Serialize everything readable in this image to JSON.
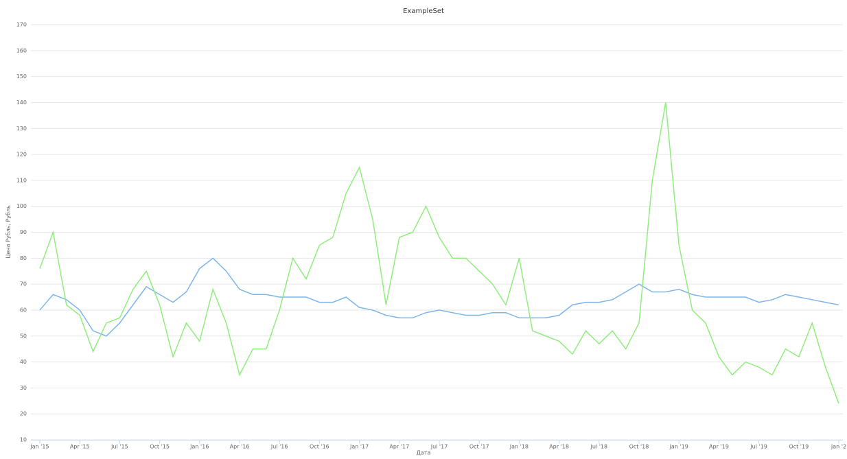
{
  "chart_data": {
    "type": "line",
    "title": "ExampleSet",
    "x_label": "Дата",
    "y_label": "Цена Рубль, Рубль",
    "x": [
      "2015-01",
      "2015-02",
      "2015-03",
      "2015-04",
      "2015-05",
      "2015-06",
      "2015-07",
      "2015-08",
      "2015-09",
      "2015-10",
      "2015-11",
      "2015-12",
      "2016-01",
      "2016-02",
      "2016-03",
      "2016-04",
      "2016-05",
      "2016-06",
      "2016-07",
      "2016-08",
      "2016-09",
      "2016-10",
      "2016-11",
      "2016-12",
      "2017-01",
      "2017-02",
      "2017-03",
      "2017-04",
      "2017-05",
      "2017-06",
      "2017-07",
      "2017-08",
      "2017-09",
      "2017-10",
      "2017-11",
      "2017-12",
      "2018-01",
      "2018-02",
      "2018-03",
      "2018-04",
      "2018-05",
      "2018-06",
      "2018-07",
      "2018-08",
      "2018-09",
      "2018-10",
      "2018-11",
      "2018-12",
      "2019-01",
      "2019-02",
      "2019-03",
      "2019-04",
      "2019-05",
      "2019-06",
      "2019-07",
      "2019-08",
      "2019-09",
      "2019-10",
      "2019-11",
      "2019-12",
      "2020-01"
    ],
    "series": [
      {
        "color": "#7cb5ec",
        "values": [
          60,
          66,
          64,
          60,
          52,
          50,
          55,
          62,
          69,
          66,
          63,
          67,
          76,
          80,
          75,
          68,
          66,
          66,
          65,
          65,
          65,
          63,
          63,
          65,
          61,
          60,
          58,
          57,
          57,
          59,
          60,
          59,
          58,
          58,
          59,
          59,
          57,
          57,
          57,
          58,
          62,
          63,
          63,
          64,
          67,
          70,
          67,
          67,
          68,
          66,
          65,
          65,
          65,
          65,
          63,
          64,
          66,
          65,
          64,
          63,
          62
        ]
      },
      {
        "color": "#90ed7d",
        "values": [
          76,
          90,
          62,
          58,
          44,
          55,
          57,
          68,
          75,
          62,
          42,
          55,
          48,
          68,
          55,
          35,
          45,
          45,
          60,
          80,
          72,
          85,
          88,
          105,
          115,
          95,
          62,
          88,
          90,
          100,
          88,
          80,
          80,
          75,
          70,
          62,
          80,
          52,
          50,
          48,
          43,
          52,
          47,
          52,
          45,
          55,
          110,
          140,
          85,
          60,
          55,
          42,
          35,
          40,
          38,
          35,
          45,
          42,
          55,
          38,
          24
        ]
      }
    ],
    "xlim": [
      "2015-01",
      "2020-01"
    ],
    "xticks": [
      {
        "value": "2015-01",
        "label": "Jan '15"
      },
      {
        "value": "2015-04",
        "label": "Apr '15"
      },
      {
        "value": "2015-07",
        "label": "Jul '15"
      },
      {
        "value": "2015-10",
        "label": "Oct '15"
      },
      {
        "value": "2016-01",
        "label": "Jan '16"
      },
      {
        "value": "2016-04",
        "label": "Apr '16"
      },
      {
        "value": "2016-07",
        "label": "Jul '16"
      },
      {
        "value": "2016-10",
        "label": "Oct '16"
      },
      {
        "value": "2017-01",
        "label": "Jan '17"
      },
      {
        "value": "2017-04",
        "label": "Apr '17"
      },
      {
        "value": "2017-07",
        "label": "Jul '17"
      },
      {
        "value": "2017-10",
        "label": "Oct '17"
      },
      {
        "value": "2018-01",
        "label": "Jan '18"
      },
      {
        "value": "2018-04",
        "label": "Apr '18"
      },
      {
        "value": "2018-07",
        "label": "Jul '18"
      },
      {
        "value": "2018-10",
        "label": "Oct '18"
      },
      {
        "value": "2019-01",
        "label": "Jan '19"
      },
      {
        "value": "2019-04",
        "label": "Apr '19"
      },
      {
        "value": "2019-07",
        "label": "Jul '19"
      },
      {
        "value": "2019-10",
        "label": "Oct '19"
      },
      {
        "value": "2020-01",
        "label": "Jan '2"
      }
    ],
    "ylim": [
      10,
      170
    ],
    "yticks": [
      10,
      20,
      30,
      40,
      50,
      60,
      70,
      80,
      90,
      100,
      110,
      120,
      130,
      140,
      150,
      160,
      170
    ],
    "grid": true
  }
}
